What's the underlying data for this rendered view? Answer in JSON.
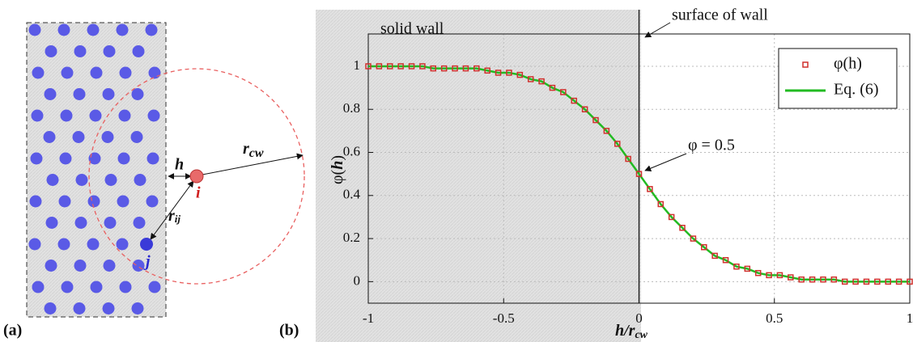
{
  "panel_a": {
    "label": "(a)",
    "h": "h",
    "r_cw": {
      "main": "r",
      "sub": "cw"
    },
    "i": "i",
    "j": "j",
    "r_ij": {
      "main": "r",
      "sub": "ij"
    }
  },
  "chart_data": {
    "type": "line",
    "panel_label": "(b)",
    "x_label": {
      "main": "h/r",
      "sub": "cw"
    },
    "y_label": {
      "main": "φ(",
      "var": "h",
      "end": ")"
    },
    "annotations": {
      "solid_wall": "solid wall",
      "surface": "surface of wall",
      "phi_half": "φ = 0.5"
    },
    "x": [
      -1,
      -0.96,
      -0.92,
      -0.88,
      -0.84,
      -0.8,
      -0.76,
      -0.72,
      -0.68,
      -0.64,
      -0.6,
      -0.56,
      -0.52,
      -0.48,
      -0.44,
      -0.4,
      -0.36,
      -0.32,
      -0.28,
      -0.24,
      -0.2,
      -0.16,
      -0.12,
      -0.08,
      -0.04,
      0,
      0.04,
      0.08,
      0.12,
      0.16,
      0.2,
      0.24,
      0.28,
      0.32,
      0.36,
      0.4,
      0.44,
      0.48,
      0.52,
      0.56,
      0.6,
      0.64,
      0.68,
      0.72,
      0.76,
      0.8,
      0.84,
      0.88,
      0.92,
      0.96,
      1
    ],
    "series": [
      {
        "name": "φ(h)",
        "color": "#d0312d",
        "style": "markers",
        "values": [
          1,
          1,
          1,
          1,
          1,
          1,
          0.99,
          0.99,
          0.99,
          0.99,
          0.99,
          0.98,
          0.97,
          0.97,
          0.96,
          0.94,
          0.93,
          0.9,
          0.88,
          0.84,
          0.8,
          0.75,
          0.7,
          0.64,
          0.57,
          0.5,
          0.43,
          0.36,
          0.3,
          0.25,
          0.2,
          0.16,
          0.12,
          0.1,
          0.07,
          0.06,
          0.04,
          0.03,
          0.03,
          0.02,
          0.01,
          0.01,
          0.01,
          0.01,
          0,
          0,
          0,
          0,
          0,
          0,
          0
        ]
      },
      {
        "name": "Eq. (6)",
        "color": "#22bb22",
        "style": "line",
        "values": [
          1,
          1,
          1,
          1,
          1,
          1,
          0.99,
          0.99,
          0.99,
          0.99,
          0.99,
          0.98,
          0.97,
          0.97,
          0.96,
          0.94,
          0.93,
          0.9,
          0.88,
          0.84,
          0.8,
          0.75,
          0.7,
          0.64,
          0.57,
          0.5,
          0.43,
          0.36,
          0.3,
          0.25,
          0.2,
          0.16,
          0.12,
          0.1,
          0.07,
          0.06,
          0.04,
          0.03,
          0.03,
          0.02,
          0.01,
          0.01,
          0.01,
          0.01,
          0,
          0,
          0,
          0,
          0,
          0,
          0
        ]
      }
    ],
    "xlim": [
      -1,
      1
    ],
    "ylim": [
      -0.1,
      1.15
    ],
    "xticks": [
      -1,
      -0.5,
      0,
      0.5,
      1
    ],
    "yticks": [
      0,
      0.2,
      0.4,
      0.6,
      0.8,
      1
    ],
    "grid": true
  }
}
